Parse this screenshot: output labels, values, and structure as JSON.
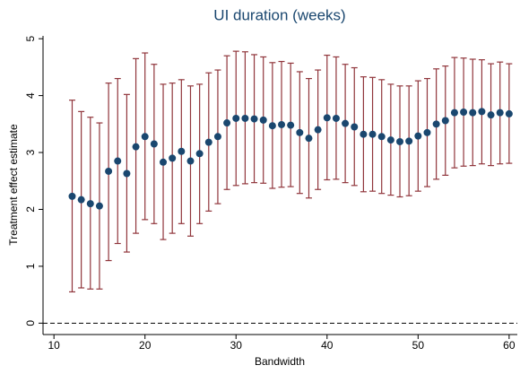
{
  "chart_data": {
    "type": "errorbar",
    "title": "UI duration (weeks)",
    "x_label": "Bandwidth",
    "y_label": "Treatment effect estimate",
    "x": [
      12,
      13,
      14,
      15,
      16,
      17,
      18,
      19,
      20,
      21,
      22,
      23,
      24,
      25,
      26,
      27,
      28,
      29,
      30,
      31,
      32,
      33,
      34,
      35,
      36,
      37,
      38,
      39,
      40,
      41,
      42,
      43,
      44,
      45,
      46,
      47,
      48,
      49,
      50,
      51,
      52,
      53,
      54,
      55,
      56,
      57,
      58,
      59,
      60
    ],
    "series": [
      {
        "color": "#1a476f",
        "bar_color": "#90353b",
        "values": [
          2.23,
          2.17,
          2.1,
          2.06,
          2.67,
          2.85,
          2.63,
          3.1,
          3.28,
          3.15,
          2.83,
          2.9,
          3.02,
          2.85,
          2.98,
          3.18,
          3.28,
          3.52,
          3.6,
          3.6,
          3.59,
          3.57,
          3.47,
          3.49,
          3.48,
          3.35,
          3.25,
          3.4,
          3.61,
          3.6,
          3.51,
          3.45,
          3.32,
          3.32,
          3.28,
          3.22,
          3.19,
          3.2,
          3.29,
          3.35,
          3.5,
          3.56,
          3.7,
          3.71,
          3.7,
          3.72,
          3.66,
          3.7,
          3.68
        ],
        "lower": [
          0.55,
          0.62,
          0.6,
          0.6,
          1.1,
          1.4,
          1.25,
          1.58,
          1.82,
          1.75,
          1.47,
          1.58,
          1.75,
          1.53,
          1.75,
          1.97,
          2.1,
          2.35,
          2.42,
          2.45,
          2.47,
          2.46,
          2.37,
          2.39,
          2.4,
          2.28,
          2.2,
          2.35,
          2.52,
          2.53,
          2.47,
          2.42,
          2.31,
          2.32,
          2.28,
          2.25,
          2.22,
          2.24,
          2.32,
          2.4,
          2.53,
          2.6,
          2.73,
          2.76,
          2.77,
          2.8,
          2.77,
          2.8,
          2.81
        ],
        "upper": [
          3.92,
          3.72,
          3.62,
          3.52,
          4.22,
          4.3,
          4.02,
          4.65,
          4.75,
          4.55,
          4.2,
          4.22,
          4.28,
          4.17,
          4.2,
          4.4,
          4.45,
          4.7,
          4.78,
          4.77,
          4.72,
          4.68,
          4.58,
          4.6,
          4.57,
          4.42,
          4.3,
          4.45,
          4.71,
          4.68,
          4.55,
          4.49,
          4.33,
          4.32,
          4.28,
          4.2,
          4.17,
          4.17,
          4.26,
          4.3,
          4.47,
          4.52,
          4.67,
          4.66,
          4.64,
          4.63,
          4.56,
          4.59,
          4.56
        ]
      }
    ],
    "reference_line": 0,
    "xlim": [
      8.8,
      60.9
    ],
    "xticks": [
      10,
      20,
      30,
      40,
      50,
      60
    ],
    "ylim": [
      -0.2,
      5.05
    ],
    "yticks": [
      0,
      1,
      2,
      3,
      4,
      5
    ]
  }
}
